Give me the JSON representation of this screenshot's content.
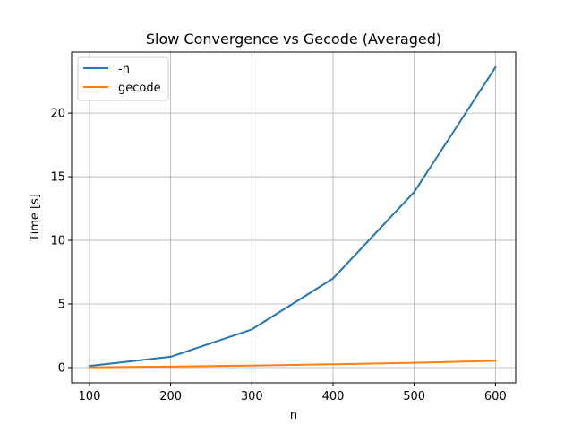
{
  "chart_data": {
    "type": "line",
    "title": "Slow Convergence vs Gecode (Averaged)",
    "xlabel": "n",
    "ylabel": "Time [s]",
    "x": [
      100,
      200,
      300,
      400,
      500,
      600
    ],
    "xlim": [
      78,
      625
    ],
    "ylim": [
      -1.2,
      24.8
    ],
    "xticks": [
      100,
      200,
      300,
      400,
      500,
      600
    ],
    "yticks": [
      0,
      5,
      10,
      15,
      20
    ],
    "grid": true,
    "legend_position": "upper left",
    "series": [
      {
        "name": "-n",
        "color": "#1f77b4",
        "values": [
          0.13,
          0.85,
          3.0,
          7.0,
          13.8,
          23.6
        ]
      },
      {
        "name": "gecode",
        "color": "#ff7f0e",
        "values": [
          0.02,
          0.08,
          0.16,
          0.26,
          0.38,
          0.53
        ]
      }
    ]
  }
}
